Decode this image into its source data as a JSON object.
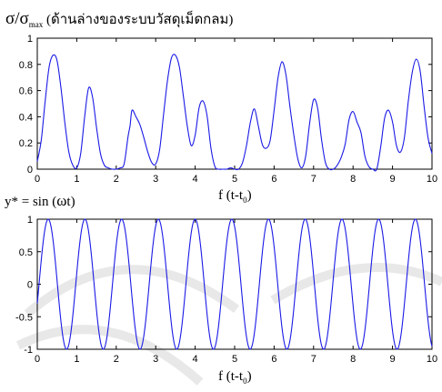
{
  "chart_data": [
    {
      "type": "line",
      "title_main": "σ/σ",
      "title_sub": "max",
      "title_rest": " (ด้านล่างของระบบวัสดุเม็ดกลม)",
      "xlabel_main": "f (t-t",
      "xlabel_sub": "0",
      "xlabel_end": ")",
      "xlim": [
        0,
        10
      ],
      "ylim": [
        0,
        1
      ],
      "xticks": [
        "0",
        "1",
        "2",
        "3",
        "4",
        "5",
        "6",
        "7",
        "8",
        "9",
        "10"
      ],
      "yticks": [
        "0",
        "0.2",
        "0.4",
        "0.6",
        "0.8",
        "1"
      ],
      "color": "#1a1ae6",
      "series": [
        {
          "x": [
            0,
            0.1,
            0.2,
            0.3,
            0.4,
            0.5,
            0.6,
            0.7,
            0.8,
            0.9,
            1.0,
            1.1,
            1.2,
            1.3,
            1.4,
            1.5,
            1.6,
            1.7,
            1.8,
            1.9,
            2.0,
            2.1,
            2.2,
            2.3,
            2.35,
            2.4,
            2.5,
            2.6,
            2.7,
            2.8,
            2.9,
            3.0,
            3.1,
            3.2,
            3.3,
            3.4,
            3.5,
            3.6,
            3.7,
            3.8,
            3.9,
            4.0,
            4.1,
            4.2,
            4.3,
            4.4,
            4.5,
            4.6,
            4.7,
            4.8,
            4.9,
            5.0,
            5.1,
            5.2,
            5.3,
            5.4,
            5.5,
            5.6,
            5.7,
            5.8,
            5.9,
            6.0,
            6.1,
            6.2,
            6.3,
            6.4,
            6.5,
            6.6,
            6.7,
            6.8,
            6.9,
            7.0,
            7.1,
            7.2,
            7.3,
            7.4,
            7.5,
            7.6,
            7.7,
            7.8,
            7.9,
            8.0,
            8.1,
            8.2,
            8.3,
            8.4,
            8.5,
            8.6,
            8.7,
            8.8,
            8.9,
            9.0,
            9.1,
            9.2,
            9.3,
            9.4,
            9.5,
            9.6,
            9.7,
            9.8,
            9.9,
            10.0
          ],
          "y": [
            0.06,
            0.22,
            0.52,
            0.78,
            0.87,
            0.83,
            0.62,
            0.35,
            0.13,
            0.03,
            0.01,
            0.12,
            0.4,
            0.62,
            0.55,
            0.32,
            0.12,
            0.03,
            0.01,
            0.0,
            0.0,
            0.01,
            0.04,
            0.25,
            0.33,
            0.45,
            0.4,
            0.34,
            0.24,
            0.13,
            0.05,
            0.04,
            0.15,
            0.42,
            0.68,
            0.85,
            0.87,
            0.78,
            0.56,
            0.33,
            0.18,
            0.26,
            0.47,
            0.52,
            0.41,
            0.16,
            0.02,
            0.0,
            0.0,
            0.0,
            0.01,
            0.0,
            0.0,
            0.05,
            0.18,
            0.36,
            0.46,
            0.33,
            0.19,
            0.16,
            0.22,
            0.45,
            0.7,
            0.82,
            0.72,
            0.48,
            0.26,
            0.08,
            0.01,
            0.1,
            0.35,
            0.53,
            0.47,
            0.23,
            0.05,
            0.0,
            0.0,
            0.03,
            0.09,
            0.19,
            0.38,
            0.44,
            0.36,
            0.28,
            0.1,
            0.02,
            0.0,
            0.0,
            0.17,
            0.39,
            0.45,
            0.36,
            0.18,
            0.13,
            0.24,
            0.52,
            0.74,
            0.84,
            0.75,
            0.48,
            0.24,
            0.12
          ]
        }
      ]
    },
    {
      "type": "line",
      "title_main": "y* = sin (",
      "title_omega": "ω",
      "title_end": "t)",
      "xlabel_main": "f (t-t",
      "xlabel_sub": "0",
      "xlabel_end": ")",
      "xlim": [
        0,
        10
      ],
      "ylim": [
        -1,
        1
      ],
      "xticks": [
        "0",
        "1",
        "2",
        "3",
        "4",
        "5",
        "6",
        "7",
        "8",
        "9",
        "10"
      ],
      "yticks": [
        "-1",
        "-0.5",
        "0",
        "0.5",
        "1"
      ],
      "color": "#1a1ae6",
      "series": [
        {
          "function": "sin",
          "amplitude": 1,
          "frequency": 1.075,
          "phase": -0.3
        }
      ]
    }
  ]
}
